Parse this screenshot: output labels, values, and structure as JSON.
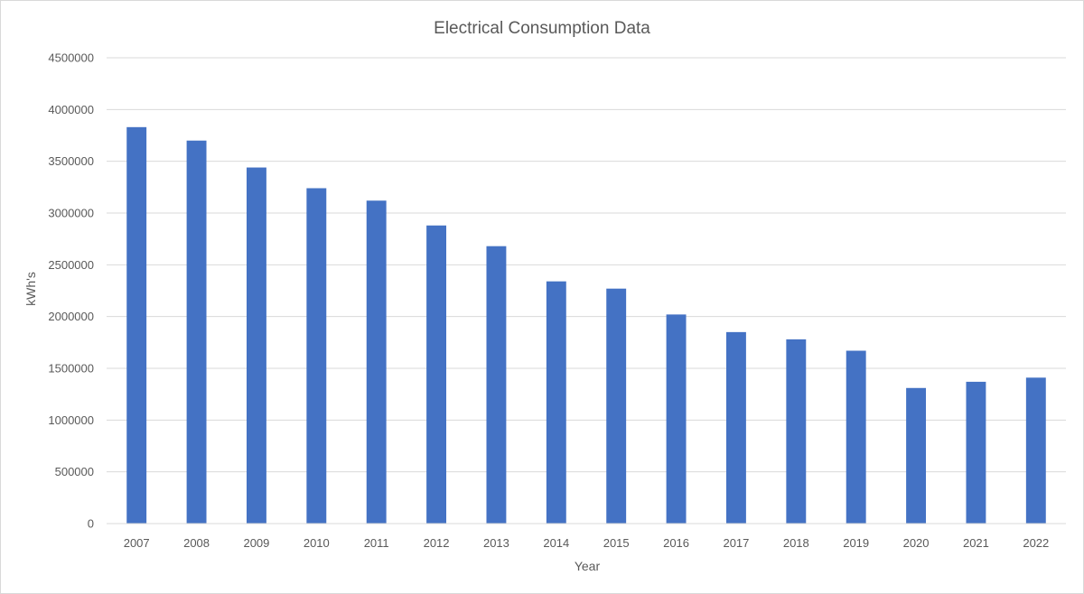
{
  "chart_data": {
    "type": "bar",
    "title": "Electrical Consumption Data",
    "xlabel": "Year",
    "ylabel": "kWh's",
    "categories": [
      "2007",
      "2008",
      "2009",
      "2010",
      "2011",
      "2012",
      "2013",
      "2014",
      "2015",
      "2016",
      "2017",
      "2018",
      "2019",
      "2020",
      "2021",
      "2022"
    ],
    "values": [
      3830000,
      3700000,
      3440000,
      3240000,
      3120000,
      2880000,
      2680000,
      2340000,
      2270000,
      2020000,
      1850000,
      1780000,
      1670000,
      1310000,
      1370000,
      1410000
    ],
    "ylim": [
      0,
      4500000
    ],
    "yticks": [
      "0",
      "500000",
      "1000000",
      "1500000",
      "2000000",
      "2500000",
      "3000000",
      "3500000",
      "4000000",
      "4500000"
    ],
    "grid": true,
    "legend": "none",
    "bar_color": "#4472c4",
    "grid_color": "#d9d9d9"
  }
}
